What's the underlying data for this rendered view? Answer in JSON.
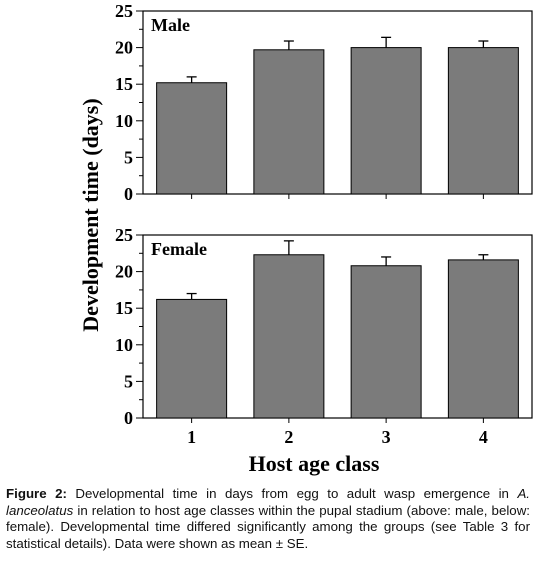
{
  "chart_data": [
    {
      "type": "bar",
      "panel_label": "Male",
      "categories": [
        "1",
        "2",
        "3",
        "4"
      ],
      "values": [
        15.2,
        19.7,
        20.0,
        20.0
      ],
      "errors": [
        0.8,
        1.2,
        1.4,
        0.9
      ],
      "ylim": [
        0,
        25
      ],
      "yticks": [
        "0",
        "5",
        "10",
        "15",
        "20",
        "25"
      ],
      "bar_color": "#7b7b7b"
    },
    {
      "type": "bar",
      "panel_label": "Female",
      "categories": [
        "1",
        "2",
        "3",
        "4"
      ],
      "values": [
        16.2,
        22.3,
        20.8,
        21.6
      ],
      "errors": [
        0.8,
        1.9,
        1.2,
        0.7
      ],
      "ylim": [
        0,
        25
      ],
      "yticks": [
        "0",
        "5",
        "10",
        "15",
        "20",
        "25"
      ],
      "bar_color": "#7b7b7b"
    }
  ],
  "ylabel": "Development time (days)",
  "xlabel": "Host age class",
  "caption": {
    "figure_label": "Figure 2:",
    "text_before_species": " Developmental time in days from egg to adult wasp emergence in ",
    "species": "A. lanceolatus",
    "text_after_species": " in relation to host age classes within the pupal stadium (above: male, below: female). Developmental time differed significantly among the groups (see Table 3 for statistical details). Data were shown as mean ± SE."
  }
}
